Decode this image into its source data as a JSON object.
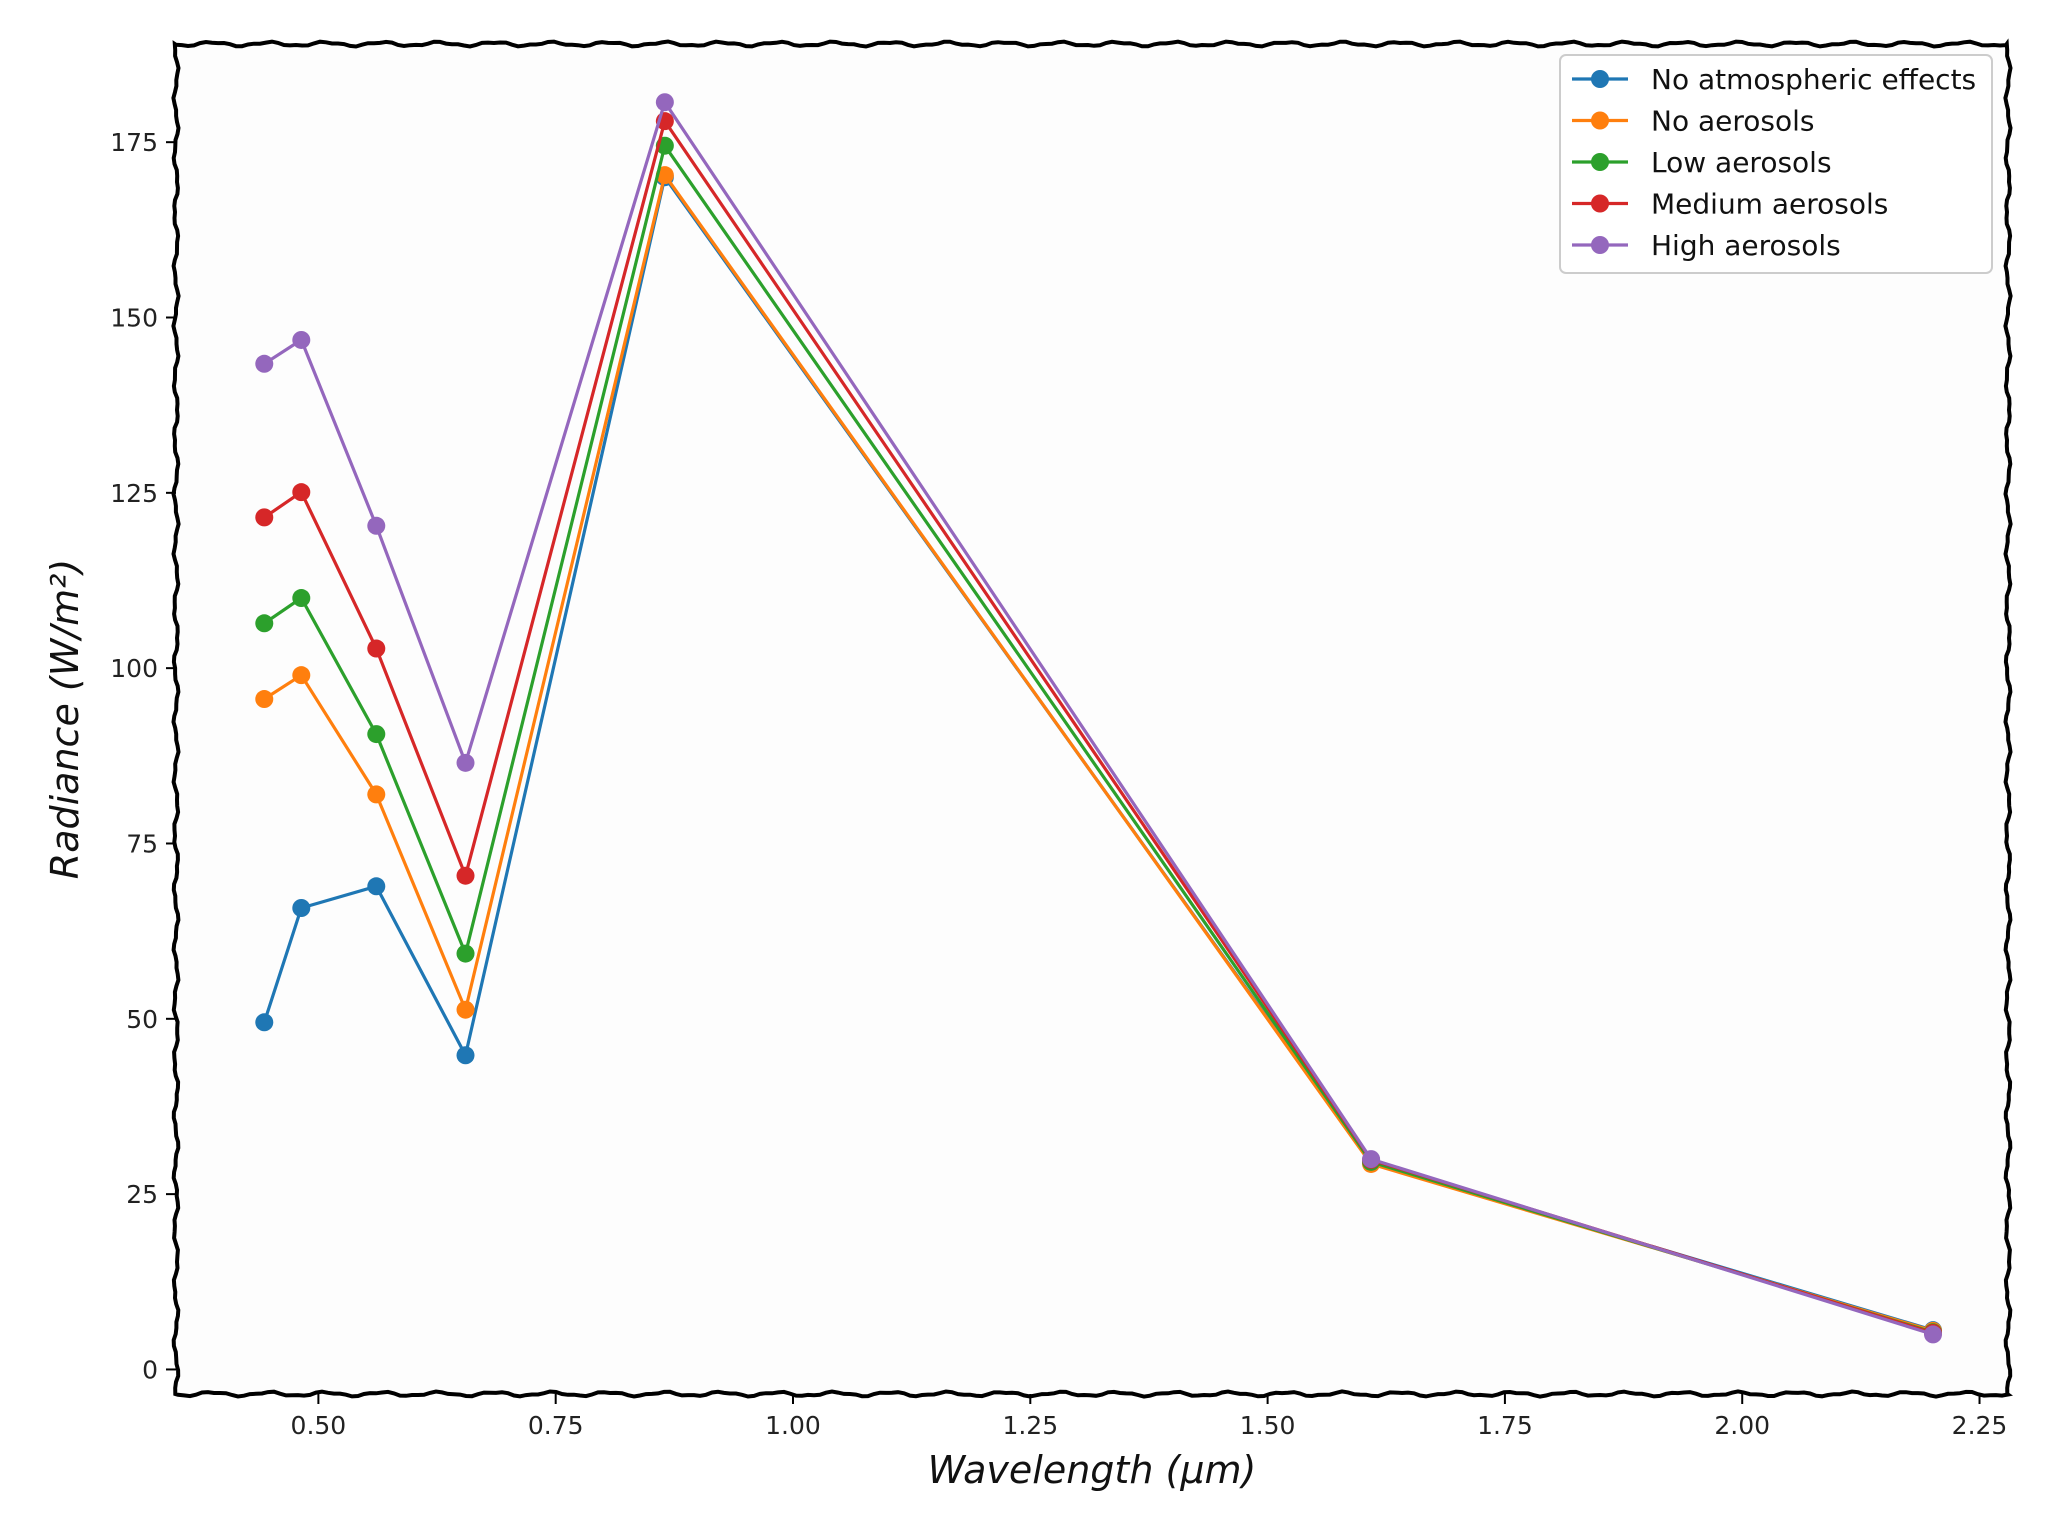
{
  "chart_data": {
    "type": "line",
    "title": "",
    "xlabel": "Wavelength (μm)",
    "ylabel": "Radiance (W/m²)",
    "xlim": [
      0.35,
      2.28
    ],
    "ylim": [
      -3.5,
      189
    ],
    "xticks": [
      0.5,
      0.75,
      1.0,
      1.25,
      1.5,
      1.75,
      2.0,
      2.25
    ],
    "xtick_labels": [
      "0.50",
      "0.75",
      "1.00",
      "1.25",
      "1.50",
      "1.75",
      "2.00",
      "2.25"
    ],
    "yticks": [
      0,
      25,
      50,
      75,
      100,
      125,
      150,
      175
    ],
    "ytick_labels": [
      "0",
      "25",
      "50",
      "75",
      "100",
      "125",
      "150",
      "175"
    ],
    "grid": false,
    "legend_position": "top-right",
    "x": [
      0.443,
      0.482,
      0.561,
      0.655,
      0.865,
      1.609,
      2.201
    ],
    "series": [
      {
        "name": "No atmospheric effects",
        "color": "#1f77b4",
        "values": [
          49.5,
          65.8,
          68.9,
          44.8,
          170.0,
          29.5,
          5.6
        ]
      },
      {
        "name": "No aerosols",
        "color": "#ff7f0e",
        "values": [
          95.6,
          99.0,
          82.0,
          51.3,
          170.3,
          29.3,
          5.5
        ]
      },
      {
        "name": "Low aerosols",
        "color": "#2ca02c",
        "values": [
          106.4,
          110.0,
          90.6,
          59.3,
          174.5,
          29.6,
          5.3
        ]
      },
      {
        "name": "Medium aerosols",
        "color": "#d62728",
        "values": [
          121.5,
          125.1,
          102.8,
          70.4,
          178.0,
          29.9,
          5.2
        ]
      },
      {
        "name": "High aerosols",
        "color": "#9467bd",
        "values": [
          143.4,
          146.8,
          120.3,
          86.5,
          180.7,
          30.0,
          5.0
        ]
      }
    ]
  }
}
